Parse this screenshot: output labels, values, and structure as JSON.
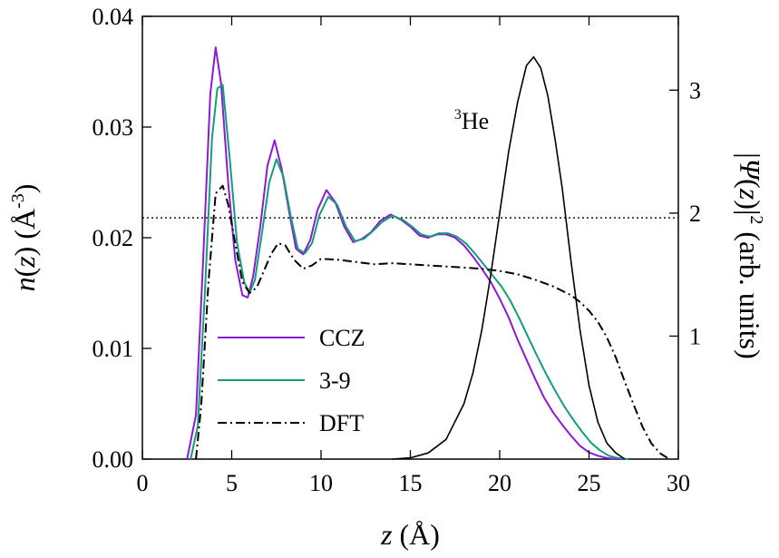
{
  "chart_data": {
    "type": "line",
    "xlabel": "z (Å)",
    "ylabel": "n(z) (Å-3)",
    "y2label": "|Ψ(z)|2 (arb. units)",
    "xlim": [
      0,
      30
    ],
    "ylim": [
      0,
      0.04
    ],
    "y2lim": [
      0,
      3.6
    ],
    "xticks": [
      "0",
      "5",
      "10",
      "15",
      "20",
      "25",
      "30"
    ],
    "yticks": [
      "0.00",
      "0.01",
      "0.02",
      "0.03",
      "0.04"
    ],
    "y2ticks": [
      "1",
      "2",
      "3"
    ],
    "legend": {
      "placement": "bottom-left",
      "entries": [
        "CCZ",
        "3-9",
        "DFT"
      ]
    },
    "annotations": [
      {
        "text": "3He",
        "x": 19.5,
        "y": 0.0305
      }
    ],
    "reference_line": {
      "y": 0.0218,
      "style": "dotted"
    },
    "series": [
      {
        "name": "CCZ",
        "color": "#8a1ad6",
        "x": [
          2.5,
          3.0,
          3.4,
          3.8,
          4.1,
          4.4,
          4.8,
          5.2,
          5.6,
          5.9,
          6.2,
          6.6,
          7.0,
          7.4,
          7.8,
          8.2,
          8.6,
          9.0,
          9.4,
          9.8,
          10.3,
          10.8,
          11.3,
          11.8,
          12.3,
          12.8,
          13.3,
          13.9,
          14.5,
          15.0,
          15.5,
          16.0,
          16.5,
          17.0,
          17.5,
          18.0,
          18.5,
          19.0,
          19.5,
          20.0,
          20.5,
          21.0,
          21.5,
          22.0,
          22.5,
          23.0,
          23.5,
          24.0,
          24.5,
          25.0,
          25.5,
          26.0,
          26.5,
          27.0
        ],
        "y": [
          0.0,
          0.004,
          0.018,
          0.033,
          0.0372,
          0.034,
          0.025,
          0.018,
          0.0148,
          0.0146,
          0.0165,
          0.021,
          0.0265,
          0.0288,
          0.0262,
          0.0225,
          0.019,
          0.0185,
          0.0198,
          0.0225,
          0.0243,
          0.0232,
          0.021,
          0.0196,
          0.0199,
          0.0205,
          0.0215,
          0.0221,
          0.0216,
          0.021,
          0.0202,
          0.02,
          0.0203,
          0.0203,
          0.02,
          0.0193,
          0.0183,
          0.0172,
          0.016,
          0.0145,
          0.0128,
          0.0108,
          0.009,
          0.0072,
          0.0055,
          0.0042,
          0.0031,
          0.0021,
          0.0012,
          0.0006,
          0.0003,
          0.0001,
          0.0,
          0.0
        ]
      },
      {
        "name": "3-9",
        "color": "#159b7d",
        "x": [
          2.7,
          3.1,
          3.5,
          3.9,
          4.2,
          4.5,
          4.9,
          5.3,
          5.7,
          6.0,
          6.3,
          6.7,
          7.1,
          7.5,
          7.9,
          8.3,
          8.7,
          9.1,
          9.5,
          9.9,
          10.4,
          10.9,
          11.4,
          11.9,
          12.4,
          12.9,
          13.4,
          14.0,
          14.6,
          15.1,
          15.6,
          16.1,
          16.6,
          17.1,
          17.6,
          18.1,
          18.6,
          19.1,
          19.6,
          20.1,
          20.6,
          21.1,
          21.6,
          22.1,
          22.6,
          23.1,
          23.6,
          24.1,
          24.6,
          25.1,
          25.6,
          26.1,
          26.6,
          27.2
        ],
        "y": [
          0.0,
          0.003,
          0.015,
          0.029,
          0.0335,
          0.0338,
          0.027,
          0.0195,
          0.016,
          0.015,
          0.0162,
          0.0205,
          0.025,
          0.0271,
          0.0255,
          0.022,
          0.019,
          0.0186,
          0.0195,
          0.022,
          0.0237,
          0.023,
          0.021,
          0.0197,
          0.0199,
          0.0206,
          0.0214,
          0.022,
          0.0216,
          0.021,
          0.0203,
          0.0201,
          0.0204,
          0.0204,
          0.0201,
          0.0195,
          0.0186,
          0.0176,
          0.0166,
          0.0156,
          0.0143,
          0.0127,
          0.011,
          0.0093,
          0.0077,
          0.0062,
          0.0048,
          0.0036,
          0.0025,
          0.0015,
          0.0008,
          0.0003,
          0.0001,
          0.0
        ]
      },
      {
        "name": "DFT",
        "color": "#000000",
        "dash": "10,4,2,4",
        "x": [
          3.0,
          3.3,
          3.7,
          4.1,
          4.5,
          4.8,
          5.2,
          5.6,
          6.0,
          6.4,
          6.8,
          7.2,
          7.6,
          8.0,
          8.5,
          9.0,
          9.5,
          10.0,
          11.0,
          12.0,
          13.0,
          14.0,
          15.0,
          16.0,
          17.0,
          18.0,
          19.0,
          20.0,
          21.0,
          22.0,
          23.0,
          24.0,
          24.5,
          25.0,
          25.5,
          26.0,
          26.5,
          27.0,
          27.5,
          28.0,
          28.5,
          29.0,
          29.5
        ],
        "y": [
          0.0,
          0.005,
          0.016,
          0.024,
          0.0247,
          0.023,
          0.0195,
          0.016,
          0.015,
          0.0155,
          0.017,
          0.0185,
          0.0195,
          0.0193,
          0.018,
          0.0172,
          0.0175,
          0.0181,
          0.018,
          0.0178,
          0.0176,
          0.0177,
          0.0176,
          0.0175,
          0.0174,
          0.0173,
          0.0172,
          0.017,
          0.0167,
          0.0162,
          0.0156,
          0.0148,
          0.0142,
          0.0134,
          0.0124,
          0.011,
          0.0092,
          0.007,
          0.0049,
          0.0029,
          0.0014,
          0.0005,
          0.0
        ]
      },
      {
        "name": "3He",
        "color": "#000000",
        "axis": "y2",
        "x": [
          14.0,
          15.0,
          16.0,
          17.0,
          18.0,
          18.5,
          19.0,
          19.5,
          20.0,
          20.5,
          21.0,
          21.5,
          21.9,
          22.3,
          22.7,
          23.1,
          23.5,
          24.0,
          24.5,
          25.0,
          25.5,
          26.0,
          26.5,
          27.0
        ],
        "y": [
          0.0,
          0.01,
          0.05,
          0.16,
          0.45,
          0.7,
          1.05,
          1.5,
          2.0,
          2.5,
          2.9,
          3.2,
          3.27,
          3.18,
          2.95,
          2.6,
          2.2,
          1.6,
          1.05,
          0.6,
          0.3,
          0.13,
          0.05,
          0.0
        ]
      }
    ]
  }
}
